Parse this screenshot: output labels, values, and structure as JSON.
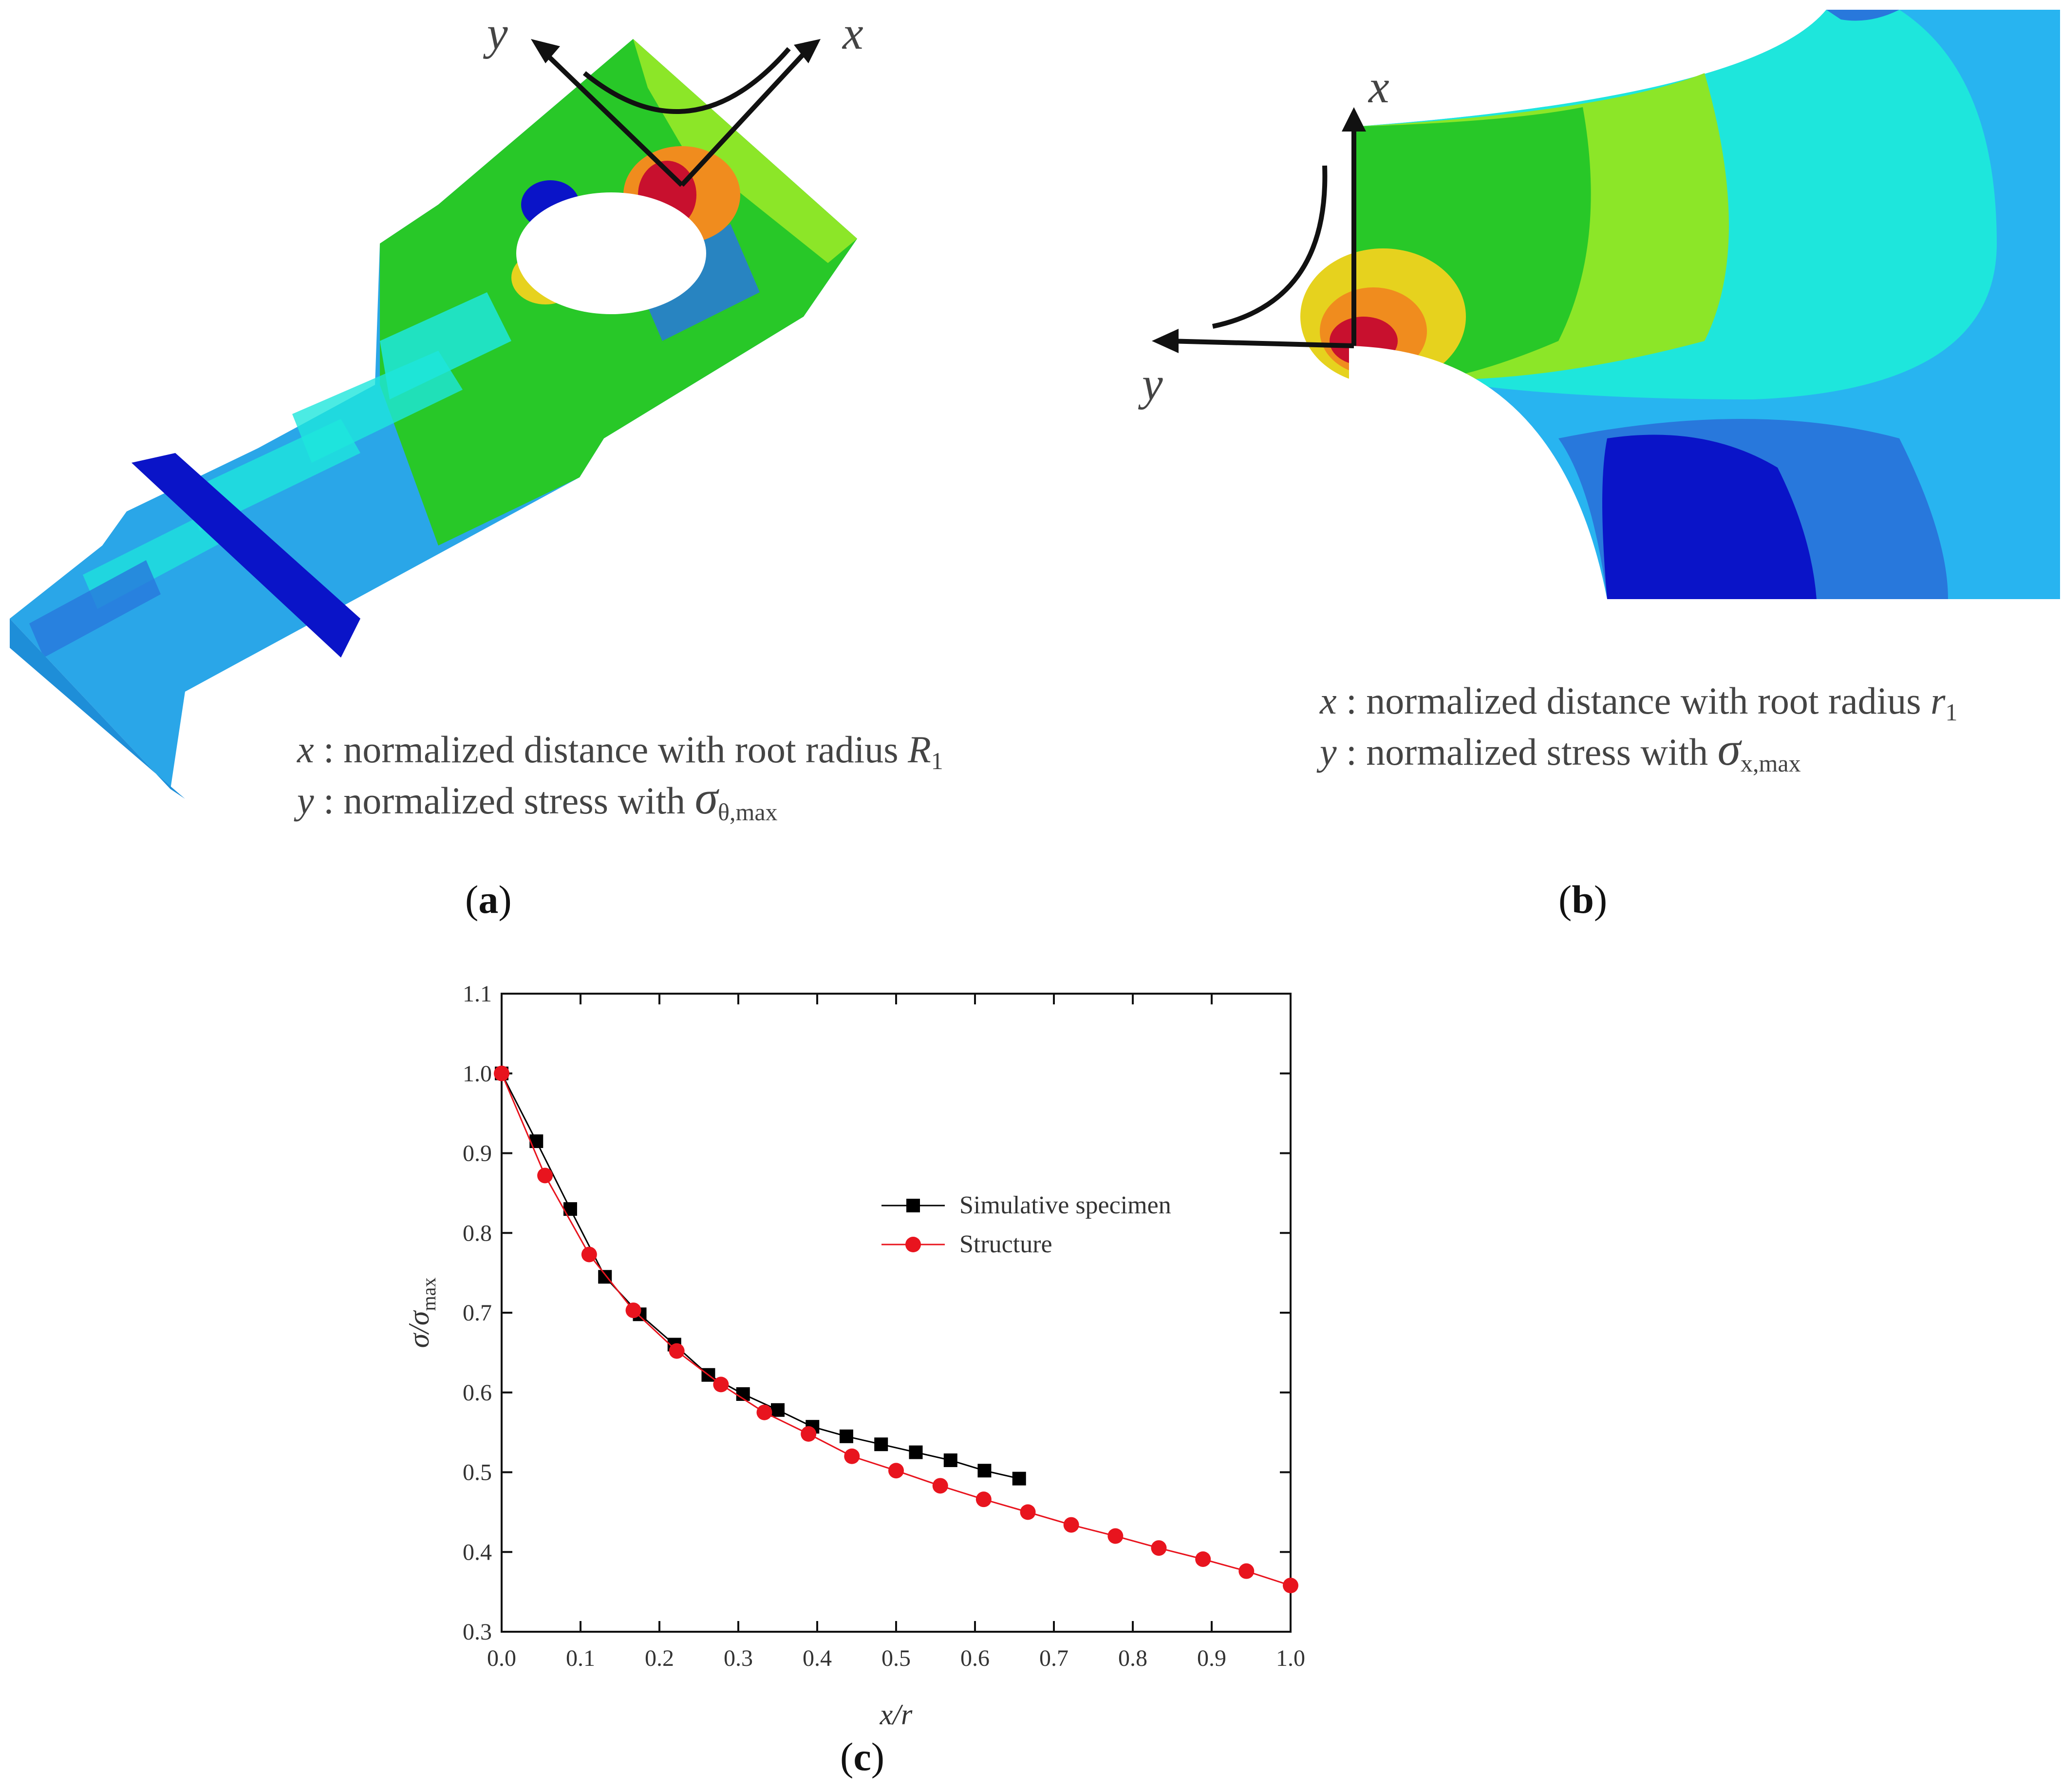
{
  "panel_a": {
    "axis_x": "x",
    "axis_y": "y",
    "caption_line1": {
      "var": "x",
      "text": " : normalized distance with root radius ",
      "sym": "R",
      "sub": "1"
    },
    "caption_line2": {
      "var": "y",
      "text": " : normalized stress with ",
      "sym": "σ",
      "sub": "θ,max"
    },
    "label": {
      "open": "(",
      "letter": "a",
      "close": ")"
    }
  },
  "panel_b": {
    "axis_x": "x",
    "axis_y": "y",
    "caption_line1": {
      "var": "x",
      "text": " : normalized distance with root radius ",
      "sym": "r",
      "sub": "1"
    },
    "caption_line2": {
      "var": "y",
      "text": " : normalized stress with ",
      "sym": "σ",
      "sub": "x,max"
    },
    "label": {
      "open": "(",
      "letter": "b",
      "close": ")"
    }
  },
  "panel_c": {
    "label": {
      "open": "(",
      "letter": "c",
      "close": ")"
    }
  },
  "colors": {
    "contour_red": "#c8102e",
    "contour_orange": "#f08c1e",
    "contour_yellow": "#e6d21e",
    "contour_green": "#28c828",
    "contour_lightgreen": "#8ce628",
    "contour_cyan": "#1ee6dc",
    "contour_lightblue": "#28b4f0",
    "contour_blue": "#2878dc",
    "contour_darkblue": "#0a14c8",
    "series_black": "#000000",
    "series_red": "#e8141e"
  },
  "chart_data": {
    "type": "line",
    "xlabel": "x/r",
    "ylabel": "σ/σmax",
    "xlim": [
      0.0,
      1.0
    ],
    "ylim": [
      0.3,
      1.1
    ],
    "xticks": [
      "0.0",
      "0.1",
      "0.2",
      "0.3",
      "0.4",
      "0.5",
      "0.6",
      "0.7",
      "0.8",
      "0.9",
      "1.0"
    ],
    "yticks": [
      "0.3",
      "0.4",
      "0.5",
      "0.6",
      "0.7",
      "0.8",
      "0.9",
      "1.0",
      "1.1"
    ],
    "legend_position": "center-right",
    "series": [
      {
        "name": "Simulative specimen",
        "marker": "square",
        "color": "#000000",
        "x": [
          0.0,
          0.044,
          0.087,
          0.131,
          0.175,
          0.219,
          0.262,
          0.306,
          0.35,
          0.394,
          0.437,
          0.481,
          0.525,
          0.569,
          0.612,
          0.656
        ],
        "y": [
          1.0,
          0.915,
          0.83,
          0.745,
          0.698,
          0.66,
          0.622,
          0.598,
          0.578,
          0.557,
          0.545,
          0.535,
          0.525,
          0.515,
          0.502,
          0.492
        ]
      },
      {
        "name": "Structure",
        "marker": "circle",
        "color": "#e8141e",
        "x": [
          0.0,
          0.055,
          0.111,
          0.167,
          0.222,
          0.278,
          0.333,
          0.389,
          0.444,
          0.5,
          0.556,
          0.611,
          0.667,
          0.722,
          0.778,
          0.833,
          0.889,
          0.944,
          1.0
        ],
        "y": [
          1.0,
          0.872,
          0.773,
          0.703,
          0.652,
          0.61,
          0.575,
          0.548,
          0.52,
          0.502,
          0.483,
          0.466,
          0.45,
          0.434,
          0.42,
          0.405,
          0.391,
          0.376,
          0.358
        ]
      }
    ]
  }
}
